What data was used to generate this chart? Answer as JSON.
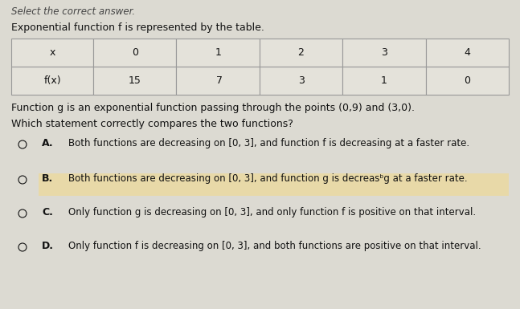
{
  "title_top": "Select the correct answer.",
  "intro_text": "Exponential function f is represented by the table.",
  "table_headers": [
    "x",
    "0",
    "1",
    "2",
    "3",
    "4"
  ],
  "table_row2": [
    "f(x)",
    "15",
    " 7",
    "3",
    "1",
    "0"
  ],
  "function_g_text": "Function g is an exponential function passing through the points (0,9) and (3,0).",
  "question_text": "Which statement correctly compares the two functions?",
  "options": [
    {
      "label": "A.",
      "text": "Both functions are decreasing on [0, 3], and function f is decreasing at a faster rate.",
      "highlighted": false
    },
    {
      "label": "B.",
      "text": "Both functions are decreasing on [0, 3], and function g is decreasᵇg at a faster rate.",
      "highlighted": true
    },
    {
      "label": "C.",
      "text": "Only function g is decreasing on [0, 3], and only function f is positive on that interval.",
      "highlighted": false
    },
    {
      "label": "D.",
      "text": "Only function f is decreasing on [0, 3], and both functions are positive on that interval.",
      "highlighted": false
    }
  ],
  "bg_color": "#dcdad2",
  "table_bg_color": "#e4e2da",
  "highlight_color": "#e8d9a8",
  "table_border_color": "#999999",
  "text_color": "#111111",
  "title_color": "#444444",
  "option_label_color": "#111111"
}
